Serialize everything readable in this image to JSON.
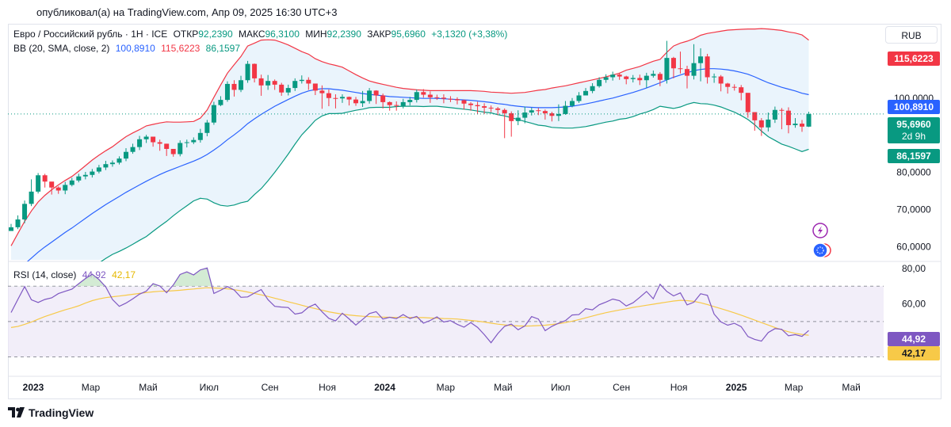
{
  "header": {
    "published": "опубликовал(а) на TradingView.com, Апр 09, 2025 16:30 UTC+3"
  },
  "legend": {
    "symbol": "Евро / Российский рубль · 1Н · ICE",
    "open_label": "ОТКР",
    "open": "92,2390",
    "high_label": "МАКС",
    "high": "96,3100",
    "low_label": "МИН",
    "low": "92,2390",
    "close_label": "ЗАКР",
    "close": "95,6960",
    "change": "+3,1320 (+3,38%)",
    "bb_label": "BB (20, SMA, close, 2)",
    "bb_basis": "100,8910",
    "bb_upper": "115,6223",
    "bb_lower": "86,1597",
    "rsi_label": "RSI (14, close)",
    "rsi_value": "44,92",
    "rsi_ma": "42,17"
  },
  "currency": "RUB",
  "price_badges": {
    "upper": "115,6223",
    "basis": "100,8910",
    "last": "95,6960",
    "countdown": "2d 9h",
    "lower": "86,1597",
    "rsi": "44,92",
    "rsi_ma": "42,17"
  },
  "branding": "TradingView",
  "colors": {
    "up": "#089981",
    "down": "#f23645",
    "basis": "#2962ff",
    "upper": "#f23645",
    "lower": "#089981",
    "rsi": "#7e57c2",
    "rsi_ma": "#f7c948",
    "band_fill": "#e3f0fb",
    "rsi_band": "#ede7f6"
  },
  "chart_data": [
    {
      "type": "candlestick",
      "title": "Евро / Российский рубль · 1Н · ICE",
      "price_axis": {
        "ticks": [
          60,
          70,
          80,
          90,
          100,
          110
        ],
        "tick_labels": [
          "60,0000",
          "70,0000",
          "80,0000",
          "90,0000",
          "100,0000",
          "110,0000"
        ],
        "ylim": [
          56,
          120
        ]
      },
      "time_axis": {
        "labels": [
          "2023",
          "Мар",
          "Май",
          "Июл",
          "Сен",
          "Ноя",
          "2024",
          "Мар",
          "Май",
          "Июл",
          "Сен",
          "Ноя",
          "2025",
          "Мар",
          "Май"
        ],
        "bold": [
          "2023",
          "2024",
          "2025"
        ],
        "label_weeks": [
          0,
          8.5,
          17,
          26,
          35,
          43.5,
          52,
          61,
          69.5,
          78,
          87,
          95.5,
          104,
          112.5,
          121
        ]
      },
      "closes": [
        65.2,
        67.3,
        71.5,
        74.8,
        79.2,
        77.5,
        75.9,
        75.1,
        76.6,
        77.8,
        78.9,
        79.3,
        80.2,
        81.3,
        82.2,
        82.6,
        83.7,
        85.5,
        86.8,
        88.9,
        89.6,
        88.1,
        87.7,
        86.3,
        84.9,
        87.9,
        88.1,
        88.7,
        90.6,
        93.4,
        98.1,
        99.5,
        103.8,
        102.2,
        104.8,
        109.2,
        105.3,
        103.4,
        104.6,
        103.6,
        101.5,
        102.7,
        104.6,
        104.9,
        103.9,
        102.0,
        101.3,
        100.0,
        99.9,
        100.3,
        99.6,
        98.6,
        99.2,
        102.0,
        100.7,
        98.9,
        98.1,
        97.9,
        98.9,
        99.5,
        101.6,
        100.9,
        100.2,
        100.1,
        99.8,
        99.7,
        99.4,
        98.5,
        98.1,
        97.8,
        97.4,
        97.2,
        96.8,
        95.9,
        93.8,
        94.7,
        96.1,
        96.7,
        96.5,
        95.9,
        95.2,
        95.7,
        97.9,
        99.2,
        100.7,
        101.9,
        103.2,
        104.9,
        105.6,
        106.3,
        105.8,
        105.1,
        105.4,
        104.8,
        106.0,
        106.5,
        104.9,
        110.8,
        108.0,
        107.8,
        106.0,
        109.4,
        111.2,
        105.6,
        105.8,
        103.9,
        103.0,
        102.9,
        101.4,
        96.2,
        94.0,
        92.1,
        94.2,
        96.8,
        96.6,
        92.7,
        93.1,
        92.3,
        95.7
      ],
      "highs": [
        66.1,
        68.4,
        72.4,
        78.1,
        79.8,
        79.6,
        76.9,
        76.2,
        77.4,
        78.5,
        79.6,
        80.1,
        80.9,
        82.0,
        83.1,
        83.2,
        84.3,
        86.5,
        87.7,
        89.8,
        90.1,
        89.6,
        88.8,
        87.7,
        86.0,
        88.6,
        88.8,
        89.4,
        91.7,
        94.1,
        99.0,
        100.5,
        104.5,
        104.8,
        106.0,
        110.0,
        109.3,
        106.3,
        106.2,
        105.0,
        104.1,
        103.6,
        105.3,
        106.1,
        105.6,
        102.7,
        103.4,
        102.3,
        101.0,
        101.0,
        100.4,
        100.3,
        101.9,
        102.7,
        102.1,
        101.2,
        99.1,
        99.1,
        99.8,
        100.3,
        102.3,
        102.4,
        101.8,
        100.9,
        101.0,
        100.5,
        100.2,
        99.6,
        98.9,
        99.0,
        98.6,
        98.0,
        97.6,
        97.2,
        96.4,
        96.7,
        97.7,
        97.4,
        97.3,
        96.9,
        96.3,
        98.3,
        99.2,
        100.0,
        101.6,
        102.7,
        104.0,
        105.6,
        106.4,
        107.1,
        106.8,
        106.0,
        106.2,
        106.3,
        106.8,
        107.4,
        107.0,
        115.4,
        111.1,
        112.5,
        108.7,
        114.5,
        113.4,
        111.9,
        106.6,
        106.2,
        104.1,
        103.7,
        103.5,
        98.6,
        94.7,
        94.6,
        96.1,
        97.7,
        97.3,
        97.5,
        94.6,
        94.1,
        96.3
      ],
      "lows": [
        64.4,
        64.7,
        66.3,
        70.9,
        74.3,
        75.9,
        74.0,
        74.2,
        74.1,
        76.2,
        77.3,
        78.1,
        78.6,
        79.7,
        80.6,
        81.5,
        82.1,
        83.0,
        85.0,
        86.0,
        87.9,
        86.9,
        85.8,
        84.4,
        84.2,
        84.3,
        86.7,
        87.6,
        88.0,
        89.7,
        92.8,
        97.8,
        99.0,
        100.4,
        101.6,
        104.1,
        104.2,
        100.6,
        102.2,
        102.2,
        100.6,
        100.7,
        101.9,
        103.9,
        102.2,
        100.8,
        97.1,
        97.8,
        97.2,
        98.7,
        98.0,
        97.9,
        97.6,
        98.5,
        98.4,
        97.2,
        96.6,
        96.6,
        97.2,
        98.0,
        98.8,
        100.1,
        98.7,
        99.5,
        98.6,
        98.9,
        98.3,
        96.9,
        96.6,
        95.6,
        95.7,
        96.2,
        95.4,
        89.2,
        89.6,
        92.7,
        93.2,
        95.3,
        95.4,
        94.2,
        93.7,
        93.8,
        95.5,
        97.5,
        98.7,
        101.2,
        101.3,
        102.8,
        104.1,
        104.7,
        104.9,
        103.7,
        104.2,
        103.5,
        102.8,
        105.5,
        103.2,
        103.9,
        105.3,
        106.6,
        102.6,
        105.0,
        104.5,
        103.9,
        104.1,
        101.8,
        101.2,
        102.0,
        99.4,
        94.7,
        91.2,
        89.8,
        91.0,
        93.3,
        91.6,
        90.5,
        92.0,
        90.9,
        92.2
      ],
      "series": [
        {
          "name": "BB (20, SMA, close, 2)",
          "role": "upper",
          "values": [
            60.2,
            63.5,
            66.8,
            69.6,
            72.0,
            73.8,
            75.3,
            76.6,
            77.8,
            78.9,
            80.3,
            81.8,
            83.3,
            84.6,
            85.8,
            86.9,
            88.3,
            89.6,
            90.6,
            91.5,
            92.5,
            92.9,
            93.3,
            93.6,
            93.5,
            93.5,
            93.6,
            93.7,
            94.6,
            96.8,
            100.2,
            103.5,
            106.7,
            109.0,
            111.2,
            114.0,
            114.8,
            115.6,
            115.7,
            115.6,
            115.0,
            114.3,
            113.4,
            112.5,
            111.8,
            110.6,
            109.8,
            109.2,
            108.8,
            108.3,
            107.3,
            106.3,
            105.4,
            104.6,
            104.1,
            103.7,
            103.3,
            102.9,
            102.6,
            102.4,
            102.2,
            102.1,
            102.0,
            102.0,
            102.0,
            102.0,
            102.0,
            102.0,
            102.0,
            101.9,
            101.8,
            101.6,
            101.5,
            101.4,
            101.3,
            101.4,
            101.5,
            101.8,
            102.1,
            102.3,
            102.7,
            103.0,
            103.3,
            103.7,
            104.1,
            104.5,
            104.9,
            105.3,
            105.7,
            106.2,
            106.7,
            107.5,
            108.0,
            108.5,
            109.2,
            109.9,
            110.4,
            112.3,
            114.0,
            114.8,
            115.3,
            116.0,
            116.9,
            117.4,
            117.7,
            118.0,
            118.3,
            118.4,
            118.5,
            118.6,
            118.6,
            118.7,
            118.6,
            118.4,
            118.2,
            117.8,
            117.5,
            117.0,
            115.6
          ]
        },
        {
          "name": "BB (20, SMA, close, 2)",
          "role": "basis",
          "values": [
            52.0,
            53.7,
            55.3,
            56.9,
            58.5,
            59.9,
            61.2,
            62.5,
            63.8,
            65.0,
            66.3,
            67.6,
            68.9,
            70.1,
            71.3,
            72.4,
            73.5,
            74.6,
            75.6,
            76.6,
            77.6,
            78.5,
            79.4,
            80.2,
            80.9,
            81.6,
            82.3,
            83.0,
            83.8,
            84.8,
            86.0,
            87.3,
            88.8,
            90.1,
            91.5,
            93.1,
            94.4,
            95.6,
            96.7,
            97.8,
            98.7,
            99.6,
            100.5,
            101.3,
            101.9,
            102.3,
            102.5,
            102.5,
            102.3,
            102.1,
            101.8,
            101.5,
            101.2,
            101.0,
            100.8,
            100.6,
            100.4,
            100.3,
            100.2,
            100.1,
            100.0,
            99.9,
            99.9,
            99.9,
            99.8,
            99.7,
            99.6,
            99.5,
            99.4,
            99.2,
            99.0,
            98.8,
            98.5,
            98.3,
            98.0,
            97.8,
            97.6,
            97.5,
            97.4,
            97.4,
            97.4,
            97.5,
            97.6,
            97.8,
            98.1,
            98.4,
            98.8,
            99.2,
            99.6,
            100.0,
            100.5,
            101.0,
            101.5,
            102.1,
            102.7,
            103.4,
            104.1,
            104.9,
            105.6,
            106.2,
            106.8,
            107.4,
            107.7,
            107.9,
            107.9,
            107.8,
            107.6,
            107.3,
            106.9,
            106.4,
            105.7,
            104.9,
            104.1,
            103.5,
            102.9,
            102.4,
            101.9,
            101.3,
            100.9
          ]
        },
        {
          "name": "BB (20, SMA, close, 2)",
          "role": "lower",
          "values": [
            43.8,
            43.9,
            43.8,
            44.2,
            45.0,
            46.0,
            47.1,
            48.4,
            49.8,
            51.1,
            52.3,
            53.4,
            54.5,
            55.6,
            56.8,
            57.9,
            58.7,
            59.6,
            60.6,
            61.7,
            62.7,
            64.1,
            65.5,
            66.8,
            68.3,
            69.7,
            71.0,
            72.3,
            73.0,
            72.8,
            71.8,
            71.1,
            70.9,
            71.2,
            71.8,
            72.2,
            74.0,
            75.6,
            77.7,
            80.0,
            82.4,
            84.9,
            87.6,
            90.1,
            92.0,
            94.0,
            95.2,
            95.8,
            95.8,
            95.9,
            96.3,
            96.7,
            97.0,
            97.4,
            97.5,
            97.5,
            97.5,
            97.7,
            97.8,
            97.8,
            97.8,
            97.7,
            97.8,
            97.8,
            97.6,
            97.4,
            97.2,
            97.0,
            96.8,
            96.5,
            96.2,
            96.0,
            95.5,
            95.2,
            94.7,
            94.2,
            93.7,
            93.2,
            92.7,
            92.5,
            92.1,
            92.0,
            91.9,
            91.9,
            92.1,
            92.3,
            92.7,
            93.1,
            93.5,
            93.8,
            94.3,
            94.5,
            95.0,
            95.7,
            96.2,
            96.9,
            97.8,
            97.5,
            97.2,
            97.6,
            98.3,
            98.8,
            98.5,
            98.4,
            98.1,
            97.6,
            96.9,
            96.2,
            95.3,
            94.2,
            92.8,
            91.1,
            89.6,
            88.6,
            87.6,
            87.0,
            86.3,
            85.6,
            86.2
          ]
        }
      ]
    },
    {
      "type": "line",
      "title": "RSI (14, close)",
      "ylim": [
        19,
        84
      ],
      "y_ticks": [
        60,
        80
      ],
      "tick_labels": [
        "60,00",
        "80,00"
      ],
      "levels": [
        30,
        50,
        70
      ],
      "series": [
        {
          "name": "RSI (14, close)",
          "values": [
            55.1,
            62.5,
            69.8,
            62.3,
            60.8,
            62.5,
            63.4,
            65.8,
            67.1,
            68.3,
            71.4,
            74.3,
            76.8,
            73.8,
            69.6,
            62.5,
            58.6,
            60.4,
            62.8,
            65.5,
            67.2,
            71.4,
            70.1,
            66.3,
            70.7,
            76.6,
            78.1,
            76.4,
            79.2,
            80.3,
            65.9,
            67.7,
            69.8,
            67.8,
            63.7,
            63.9,
            66.1,
            68.1,
            62.4,
            58.6,
            58.2,
            57.9,
            54.2,
            54.9,
            58.1,
            59.9,
            55.5,
            51.8,
            50.4,
            54.7,
            51.5,
            48.0,
            51.2,
            54.5,
            55.6,
            51.4,
            52.4,
            51.6,
            53.9,
            51.7,
            52.9,
            49.1,
            50.6,
            52.6,
            49.7,
            50.5,
            48.4,
            46.8,
            49.4,
            46.7,
            42.6,
            38.0,
            43.2,
            47.3,
            48.6,
            45.3,
            47.5,
            52.8,
            51.4,
            44.8,
            47.3,
            49.1,
            50.5,
            53.7,
            53.9,
            57.3,
            56.6,
            59.5,
            61.0,
            62.7,
            61.8,
            58.8,
            60.6,
            63.7,
            67.0,
            62.9,
            71.1,
            67.0,
            64.5,
            66.2,
            59.4,
            60.9,
            65.7,
            64.8,
            54.2,
            49.8,
            47.9,
            49.0,
            47.1,
            41.5,
            39.9,
            38.9,
            43.8,
            46.0,
            45.6,
            41.9,
            42.6,
            41.6,
            44.9
          ]
        },
        {
          "name": "MA",
          "values": [
            46.6,
            47.2,
            48.4,
            49.7,
            51.3,
            52.8,
            54.1,
            55.4,
            56.6,
            57.7,
            58.9,
            60.4,
            61.8,
            62.8,
            63.5,
            64.0,
            64.4,
            64.9,
            65.4,
            65.9,
            66.4,
            66.8,
            67.1,
            67.2,
            67.4,
            67.7,
            68.1,
            68.4,
            68.8,
            69.1,
            69.0,
            68.8,
            68.5,
            68.0,
            67.4,
            66.7,
            65.9,
            65.1,
            64.2,
            63.2,
            62.2,
            61.2,
            60.2,
            59.2,
            58.2,
            57.3,
            56.4,
            55.5,
            54.8,
            54.2,
            53.7,
            53.3,
            53.0,
            52.8,
            52.6,
            52.5,
            52.4,
            52.3,
            52.3,
            52.3,
            52.2,
            52.2,
            52.0,
            51.9,
            51.7,
            51.6,
            51.4,
            51.0,
            50.6,
            50.2,
            49.7,
            49.1,
            48.5,
            48.1,
            47.7,
            47.5,
            47.4,
            47.5,
            47.7,
            47.9,
            48.3,
            48.8,
            49.4,
            50.2,
            51.1,
            52.1,
            53.1,
            54.1,
            55.0,
            55.8,
            56.5,
            57.2,
            58.0,
            58.6,
            59.2,
            59.8,
            60.4,
            61.0,
            61.6,
            62.0,
            61.8,
            61.4,
            60.6,
            59.6,
            58.4,
            57.3,
            56.1,
            54.9,
            53.6,
            52.2,
            50.8,
            49.4,
            48.0,
            46.6,
            45.3,
            44.2,
            43.3,
            42.7,
            42.2
          ]
        }
      ]
    }
  ]
}
